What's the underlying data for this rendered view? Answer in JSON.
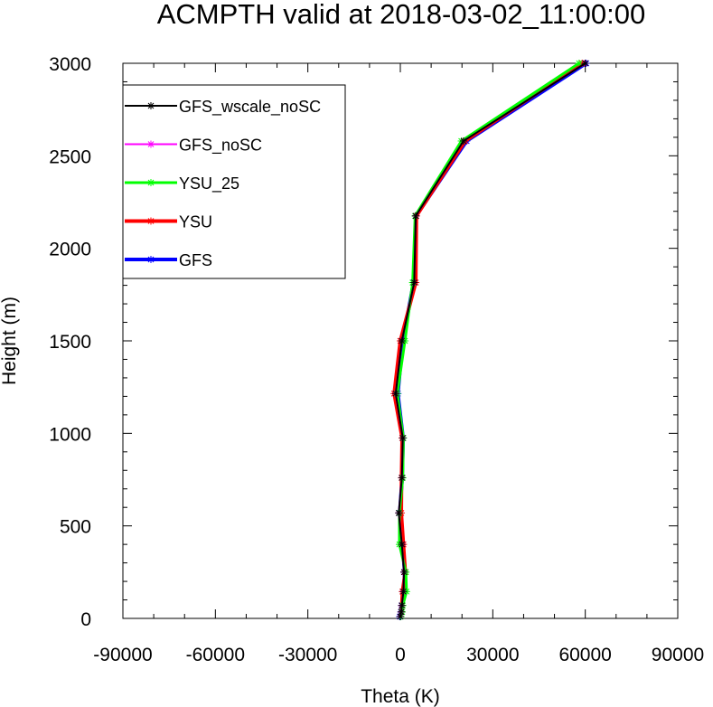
{
  "chart_data": {
    "type": "line",
    "title": "ACMPTH valid at 2018-03-02_11:00:00",
    "xlabel": "Theta (K)",
    "ylabel": "Height (m)",
    "xlim": [
      -90000,
      90000
    ],
    "ylim": [
      0,
      3000
    ],
    "xticks": [
      -90000,
      -60000,
      -30000,
      0,
      30000,
      60000,
      90000
    ],
    "yticks": [
      0,
      500,
      1000,
      1500,
      2000,
      2500,
      3000
    ],
    "xtick_labels": [
      "-90000",
      "-60000",
      "-30000",
      "0",
      "30000",
      "60000",
      "90000"
    ],
    "ytick_labels": [
      "0",
      "500",
      "1000",
      "1500",
      "2000",
      "2500",
      "3000"
    ],
    "grid": false,
    "legend_position": "top-left",
    "y": [
      10,
      35,
      70,
      145,
      250,
      400,
      570,
      760,
      975,
      1215,
      1500,
      1815,
      2175,
      2580,
      3000
    ],
    "series": [
      {
        "name": "GFS_wscale_noSC",
        "color": "#000000",
        "x": [
          0,
          300,
          500,
          1000,
          1200,
          500,
          -500,
          500,
          800,
          -1500,
          500,
          4500,
          5000,
          20500,
          60000
        ]
      },
      {
        "name": "GFS_noSC",
        "color": "#ff00ff",
        "x": [
          0,
          300,
          500,
          1000,
          1200,
          500,
          -500,
          500,
          800,
          -1500,
          500,
          4500,
          5000,
          20500,
          60000
        ]
      },
      {
        "name": "YSU_25",
        "color": "#00ff00",
        "x": [
          200,
          600,
          800,
          2000,
          1800,
          -300,
          -300,
          800,
          1000,
          -1000,
          1500,
          4000,
          4800,
          19800,
          58000
        ]
      },
      {
        "name": "YSU",
        "color": "#ff0000",
        "x": [
          0,
          400,
          500,
          700,
          1600,
          1000,
          300,
          400,
          600,
          -2000,
          0,
          5000,
          5200,
          21000,
          59000
        ]
      },
      {
        "name": "GFS",
        "color": "#0000ff",
        "x": [
          -200,
          200,
          400,
          1100,
          1400,
          700,
          -200,
          600,
          900,
          -800,
          800,
          4300,
          5100,
          21500,
          60300
        ]
      }
    ]
  }
}
